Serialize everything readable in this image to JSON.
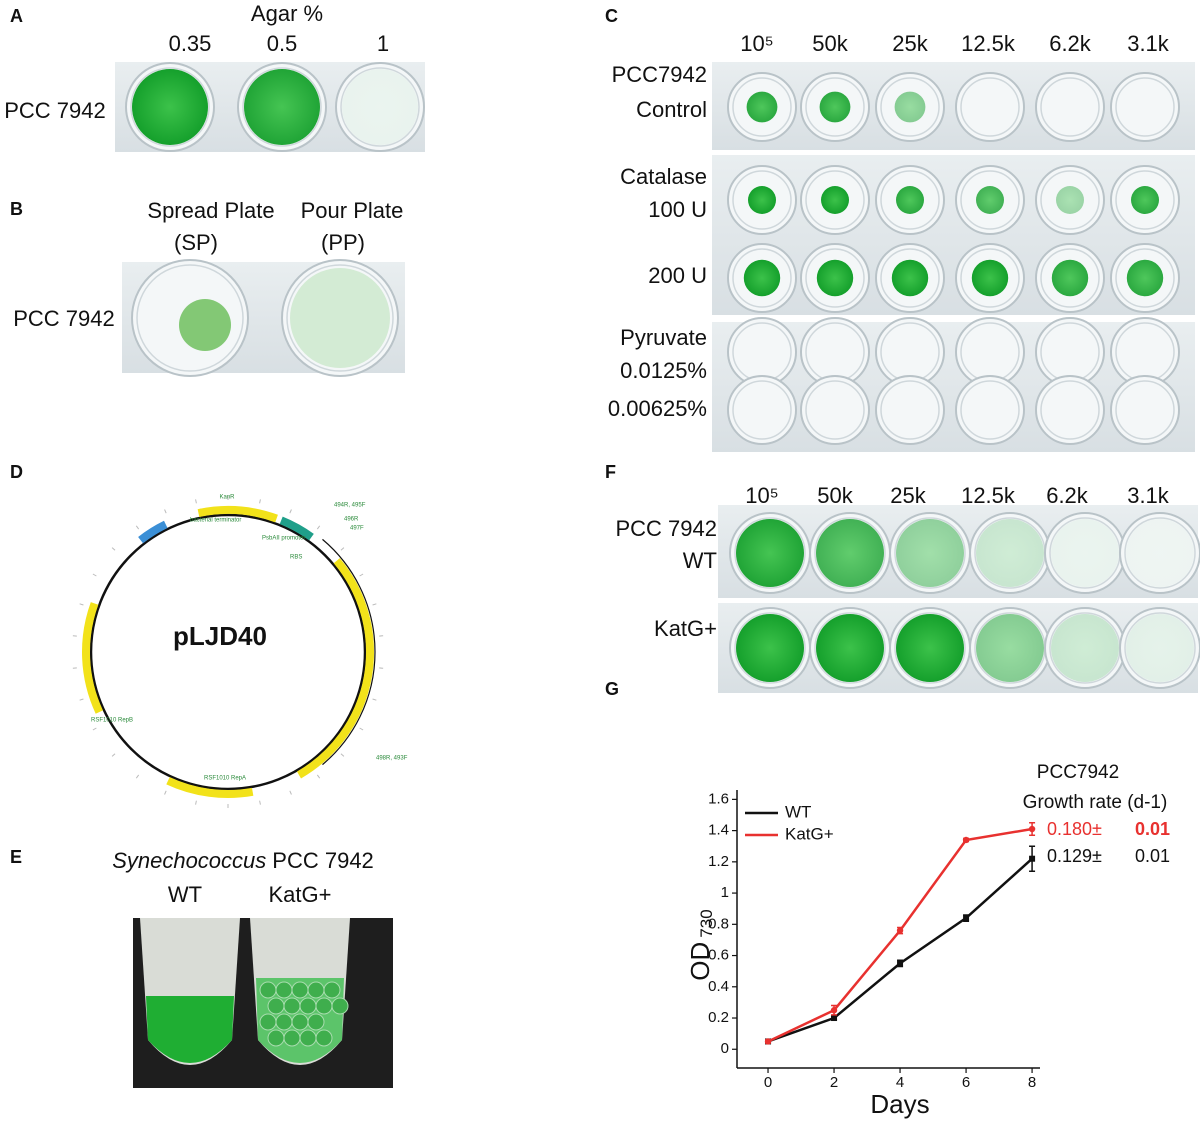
{
  "panels": {
    "A": {
      "label": "A",
      "title": "Agar %",
      "columns": [
        "0.35",
        "0.5",
        "1"
      ],
      "row": "PCC 7942"
    },
    "B": {
      "label": "B",
      "columns": [
        [
          "Spread Plate",
          "(SP)"
        ],
        [
          "Pour Plate",
          "(PP)"
        ]
      ],
      "row": "PCC 7942"
    },
    "C": {
      "label": "C",
      "columns": [
        "10⁵",
        "50k",
        "25k",
        "12.5k",
        "6.2k",
        "3.1k"
      ],
      "rows": [
        "PCC7942",
        "Control",
        "Catalase",
        "100 U",
        "200 U",
        "Pyruvate",
        "0.0125%",
        "0.00625%"
      ]
    },
    "D": {
      "label": "D",
      "plasmid": "pLJD40",
      "features": [
        "KanR",
        "bacterial terminator",
        "PsbAII promoter",
        "RBS",
        "494R, 495F",
        "496R",
        "497F",
        "498R, 493F",
        "RSF1010 RepA",
        "RSF1010 RepB"
      ]
    },
    "E": {
      "label": "E",
      "species": "Synechococcus",
      "strain": "PCC 7942",
      "columns": [
        "WT",
        "KatG+"
      ]
    },
    "F": {
      "label": "F",
      "columns": [
        "10⁵",
        "50k",
        "25k",
        "12.5k",
        "6.2k",
        "3.1k"
      ],
      "rows": [
        "PCC 7942",
        "WT",
        "KatG+"
      ]
    }
  },
  "chart_data": {
    "type": "line",
    "label": "G",
    "ylabel": "OD",
    "ylabel_sub": "730",
    "xlabel": "Days",
    "annotations": [
      "PCC7942",
      "Growth rate (d-1)"
    ],
    "rates": [
      {
        "text": "0.180±",
        "error": "0.01",
        "color": "#e8312f"
      },
      {
        "text": "0.129±",
        "error": "0.01",
        "color": "#111111"
      }
    ],
    "x": [
      0,
      2,
      4,
      6,
      8
    ],
    "series": [
      {
        "name": "WT",
        "color": "#111111",
        "values": [
          0.05,
          0.2,
          0.55,
          0.84,
          1.22
        ],
        "errors": [
          0.01,
          0.01,
          0.02,
          0.02,
          0.08
        ]
      },
      {
        "name": "KatG+",
        "color": "#e8312f",
        "values": [
          0.05,
          0.25,
          0.76,
          1.34,
          1.41
        ],
        "errors": [
          0.01,
          0.03,
          0.02,
          0.01,
          0.04
        ]
      }
    ],
    "xlim": [
      -0.94,
      8.24
    ],
    "xticks": [
      0,
      2,
      4,
      6,
      8
    ],
    "ylim": [
      -0.12,
      1.66
    ],
    "yticks": [
      0,
      0.2,
      0.4,
      0.6,
      0.8,
      1,
      1.2,
      1.4,
      1.6
    ],
    "grid": false
  }
}
